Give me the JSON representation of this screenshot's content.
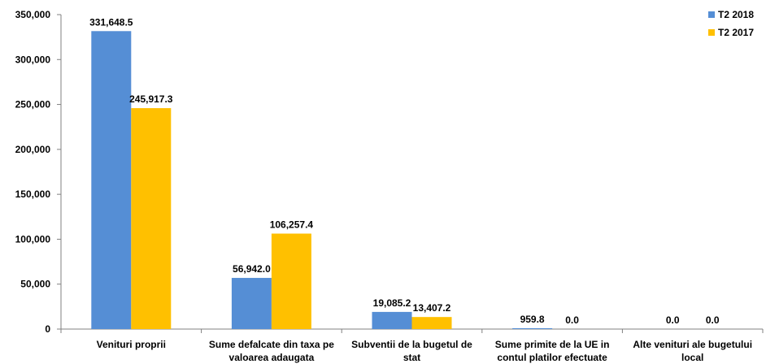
{
  "chart_data": {
    "type": "bar",
    "categories": [
      [
        "Venituri proprii"
      ],
      [
        "Sume defalcate din taxa pe",
        "valoarea adaugata"
      ],
      [
        "Subventii de la bugetul de",
        "stat"
      ],
      [
        "Sume primite de la UE in",
        "contul platilor efectuate"
      ],
      [
        "Alte venituri ale bugetului",
        "local"
      ]
    ],
    "series": [
      {
        "name": "T2 2018",
        "color": "#558ED5",
        "values": [
          331648.5,
          56942.0,
          19085.2,
          959.8,
          0.0
        ],
        "labels": [
          "331,648.5",
          "56,942.0",
          "19,085.2",
          "959.8",
          "0.0"
        ]
      },
      {
        "name": "T2 2017",
        "color": "#FFC000",
        "values": [
          245917.3,
          106257.4,
          13407.2,
          0.0,
          0.0
        ],
        "labels": [
          "245,917.3",
          "106,257.4",
          "13,407.2",
          "0.0",
          "0.0"
        ]
      }
    ],
    "ylim": [
      0,
      350000
    ],
    "yticks": [
      0,
      50000,
      100000,
      150000,
      200000,
      250000,
      300000,
      350000
    ],
    "ytick_labels": [
      "0",
      "50,000",
      "100,000",
      "150,000",
      "200,000",
      "250,000",
      "300,000",
      "350,000"
    ],
    "grid": false,
    "legend_position": "top-right"
  }
}
